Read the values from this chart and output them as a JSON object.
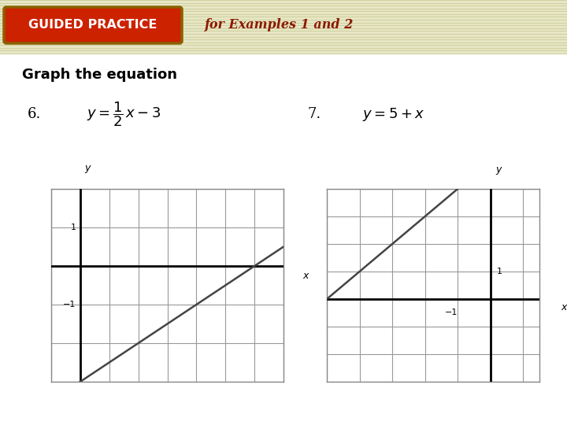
{
  "bg_color": "#f5f5dc",
  "header_bg": "#e8e8c8",
  "header_line_color": "#d0d0a0",
  "body_bg": "#ffffff",
  "gp_button_color": "#cc2200",
  "gp_button_edge": "#8b6000",
  "gp_text": "GUIDED PRACTICE",
  "for_text": "for Examples 1 and 2",
  "for_text_color": "#8b1a00",
  "graph_eq_text": "Graph the equation",
  "grid_color": "#999999",
  "grid_lw": 0.8,
  "axis_color": "#000000",
  "line_color": "#444444",
  "line_lw": 1.8,
  "graph1_xrange": [
    -2,
    8
  ],
  "graph1_yrange": [
    -4,
    3
  ],
  "graph1_xcross": 0,
  "graph1_ycross": 0,
  "graph1_slope": 0.5,
  "graph1_intercept": -3,
  "graph2_xrange": [
    -5,
    3
  ],
  "graph2_yrange": [
    -4,
    4
  ],
  "graph2_xcross": 0,
  "graph2_ycross": 0,
  "graph2_slope": 1,
  "graph2_intercept": 5
}
